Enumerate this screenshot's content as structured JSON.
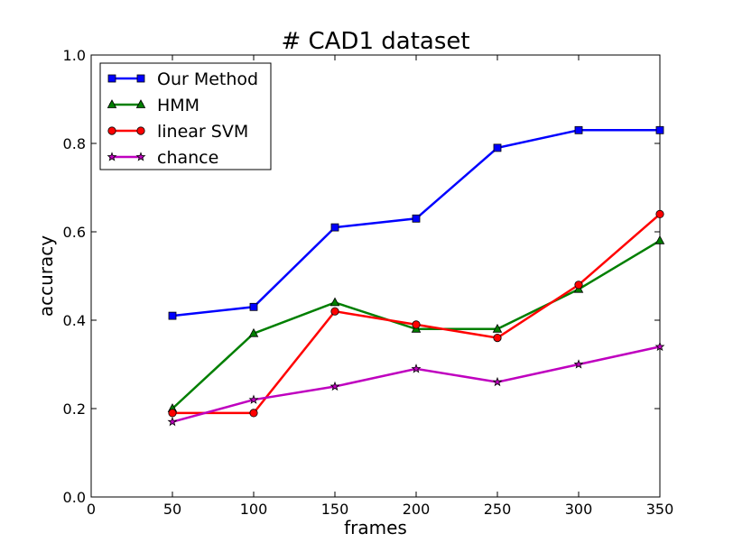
{
  "chart_data": {
    "type": "line",
    "title": "# CAD1 dataset",
    "xlabel": "frames",
    "ylabel": "accuracy",
    "xlim": [
      0,
      350
    ],
    "ylim": [
      0.0,
      1.0
    ],
    "xticks": [
      0,
      50,
      100,
      150,
      200,
      250,
      300,
      350
    ],
    "yticks": [
      0.0,
      0.2,
      0.4,
      0.6,
      0.8,
      1.0
    ],
    "xtick_labels": [
      "0",
      "50",
      "100",
      "150",
      "200",
      "250",
      "300",
      "350"
    ],
    "ytick_labels": [
      "0.0",
      "0.2",
      "0.4",
      "0.6",
      "0.8",
      "1.0"
    ],
    "grid": false,
    "legend_position": "top-left",
    "x": [
      50,
      100,
      150,
      200,
      250,
      300,
      350
    ],
    "series": [
      {
        "name": "Our Method",
        "color": "#0000ff",
        "marker": "square",
        "values": [
          0.41,
          0.43,
          0.61,
          0.63,
          0.79,
          0.83,
          0.83
        ]
      },
      {
        "name": "HMM",
        "color": "#007f00",
        "marker": "triangle",
        "values": [
          0.2,
          0.37,
          0.44,
          0.38,
          0.38,
          0.47,
          0.58
        ]
      },
      {
        "name": "linear SVM",
        "color": "#ff0000",
        "marker": "circle",
        "values": [
          0.19,
          0.19,
          0.42,
          0.39,
          0.36,
          0.48,
          0.64
        ]
      },
      {
        "name": "chance",
        "color": "#bf00bf",
        "marker": "star",
        "values": [
          0.17,
          0.22,
          0.25,
          0.29,
          0.26,
          0.3,
          0.34
        ]
      }
    ]
  }
}
